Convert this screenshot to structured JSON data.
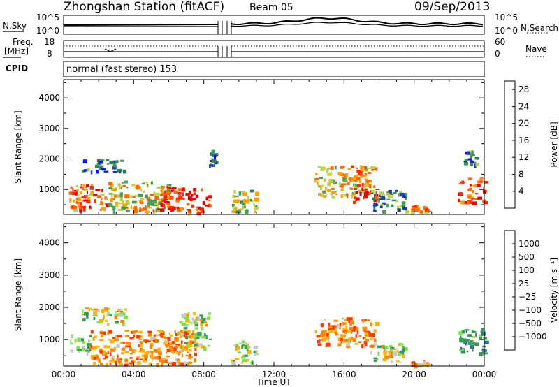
{
  "header": {
    "station": "Zhongshan Station (fitACF)",
    "beam": "Beam 05",
    "date": "09/Sep/2013"
  },
  "top_panels": {
    "nsky_label": "N.Sky",
    "nsearch_label": "N.Search",
    "noise_ticks": [
      "10^5",
      "10^0"
    ],
    "freq_label": "Freq.",
    "freq_unit": "[MHz]",
    "freq_ticks": [
      "18",
      "8"
    ],
    "nave_label": "Nave",
    "nave_ticks": [
      "60",
      "0"
    ],
    "cpid_label": "CPID",
    "cpid_text": "normal (fast stereo) 153"
  },
  "colors": {
    "power_scale": [
      "#0a14ff",
      "#1f3ca6",
      "#2f7f55",
      "#4a9a5a",
      "#b8d34a",
      "#ff9f00",
      "#ff6a00",
      "#ff2a00",
      "#e80000"
    ],
    "velocity_scale": [
      "#e00000",
      "#ff3c00",
      "#ff8800",
      "#ffb300",
      "#c8c8c8",
      "#7ee04a",
      "#3a9a55",
      "#2f6aa8",
      "#1f2fa8"
    ]
  },
  "chart_data": [
    {
      "type": "heatmap",
      "name": "power",
      "xlabel": "Time UT",
      "ylabel": "Slant Range [km]",
      "x_ticks": [
        "00:00",
        "04:00",
        "08:00",
        "12:00",
        "16:00",
        "20:00",
        "00:00"
      ],
      "x_range_hours": [
        0,
        24
      ],
      "y_ticks": [
        1000,
        2000,
        3000,
        4000
      ],
      "ylim": [
        180,
        4600
      ],
      "colorbar": {
        "label": "Power [dB]",
        "ticks": [
          4,
          8,
          12,
          16,
          20,
          24,
          28
        ],
        "range": [
          0,
          30
        ]
      },
      "regions": [
        {
          "t": [
            0.3,
            2.5
          ],
          "r": [
            350,
            1200
          ],
          "value": 22
        },
        {
          "t": [
            2.5,
            6.0
          ],
          "r": [
            300,
            1300
          ],
          "value": 16
        },
        {
          "t": [
            5.5,
            8.3
          ],
          "r": [
            350,
            1100
          ],
          "value": 26
        },
        {
          "t": [
            1.0,
            3.5
          ],
          "r": [
            1600,
            2000
          ],
          "value": 8
        },
        {
          "t": [
            4.0,
            8.0
          ],
          "r": [
            250,
            420
          ],
          "value": 24
        },
        {
          "t": [
            8.3,
            8.7
          ],
          "r": [
            1800,
            2300
          ],
          "value": 6
        },
        {
          "t": [
            9.5,
            11.0
          ],
          "r": [
            300,
            1000
          ],
          "value": 14
        },
        {
          "t": [
            14.3,
            17.8
          ],
          "r": [
            800,
            1800
          ],
          "value": 18
        },
        {
          "t": [
            16.5,
            17.8
          ],
          "r": [
            600,
            1200
          ],
          "value": 26
        },
        {
          "t": [
            17.5,
            19.5
          ],
          "r": [
            300,
            1000
          ],
          "value": 10
        },
        {
          "t": [
            19.8,
            20.8
          ],
          "r": [
            200,
            500
          ],
          "value": 20
        },
        {
          "t": [
            22.5,
            24.0
          ],
          "r": [
            600,
            1400
          ],
          "value": 24
        },
        {
          "t": [
            22.8,
            23.5
          ],
          "r": [
            1800,
            2300
          ],
          "value": 8
        }
      ]
    },
    {
      "type": "heatmap",
      "name": "velocity",
      "xlabel": "Time UT",
      "ylabel": "Slant Range [km]",
      "x_ticks": [
        "00:00",
        "04:00",
        "08:00",
        "12:00",
        "16:00",
        "20:00",
        "00:00"
      ],
      "x_range_hours": [
        0,
        24
      ],
      "y_ticks": [
        1000,
        2000,
        3000,
        4000
      ],
      "ylim": [
        180,
        4600
      ],
      "colorbar": {
        "label": "Velocity [m s⁻¹]",
        "ticks": [
          "1000",
          "500",
          "100",
          "25",
          "−25",
          "−100",
          "−500",
          "−1000"
        ]
      },
      "regions": [
        {
          "t": [
            0.3,
            1.5
          ],
          "r": [
            600,
            1200
          ],
          "value": 100
        },
        {
          "t": [
            1.0,
            3.5
          ],
          "r": [
            1500,
            2000
          ],
          "value": 0
        },
        {
          "t": [
            1.5,
            7.5
          ],
          "r": [
            250,
            1300
          ],
          "value": -150
        },
        {
          "t": [
            6.5,
            8.3
          ],
          "r": [
            700,
            1900
          ],
          "value": 0
        },
        {
          "t": [
            9.5,
            11.0
          ],
          "r": [
            300,
            1000
          ],
          "value": 50
        },
        {
          "t": [
            14.3,
            17.8
          ],
          "r": [
            800,
            1700
          ],
          "value": -150
        },
        {
          "t": [
            17.5,
            19.5
          ],
          "r": [
            300,
            900
          ],
          "value": 0
        },
        {
          "t": [
            19.8,
            20.8
          ],
          "r": [
            200,
            400
          ],
          "value": -150
        },
        {
          "t": [
            22.5,
            24.0
          ],
          "r": [
            600,
            1400
          ],
          "value": 200
        }
      ]
    }
  ]
}
